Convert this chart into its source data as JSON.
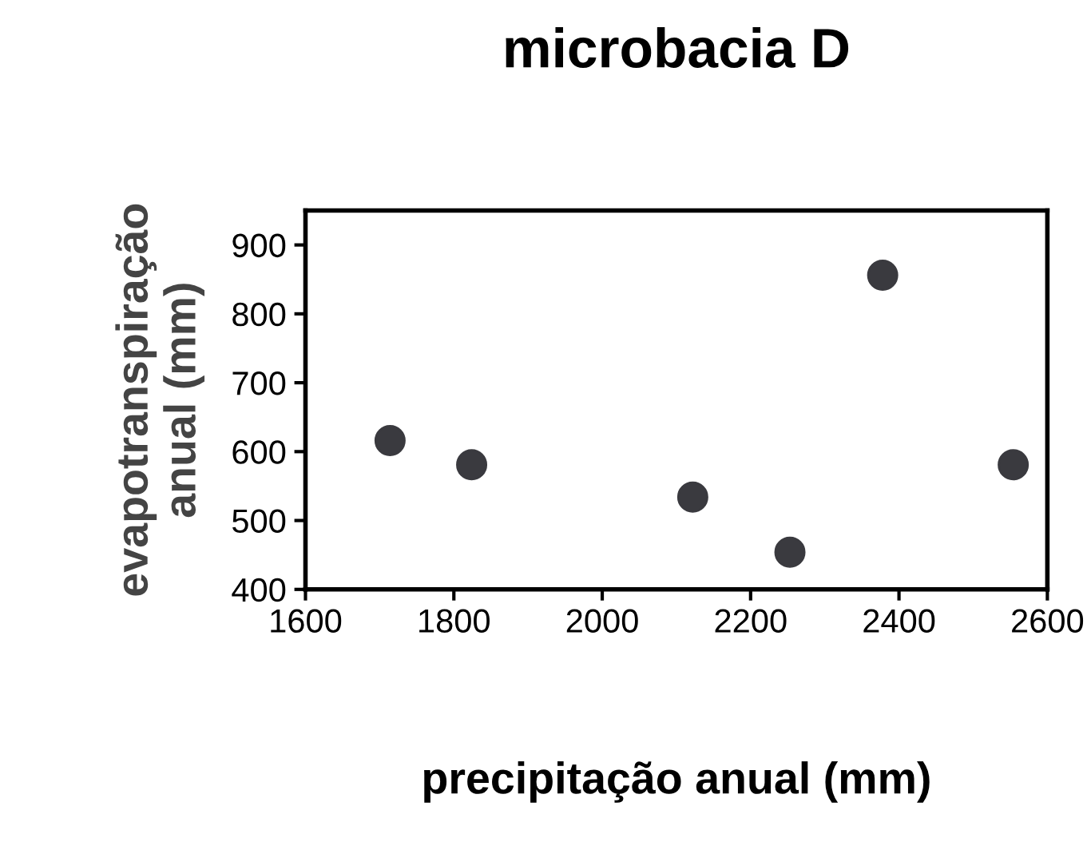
{
  "chart_data": {
    "type": "scatter",
    "title": "microbacia D",
    "xlabel": "precipitação anual (mm)",
    "ylabel": "evapotranspiração\nanual (mm)",
    "x": [
      1714,
      1824,
      2122,
      2253,
      2378,
      2554
    ],
    "series": [
      {
        "color": "#3a3a3f",
        "values": [
          616,
          581,
          534,
          454,
          856,
          581
        ]
      }
    ],
    "xlim": [
      1600,
      2600
    ],
    "xticks": [
      1600,
      1800,
      2000,
      2200,
      2400,
      2600
    ],
    "ylim": [
      400,
      950
    ],
    "yticks": [
      400,
      500,
      600,
      700,
      800,
      900
    ],
    "marker": "circle",
    "grid": false,
    "legend": false
  }
}
